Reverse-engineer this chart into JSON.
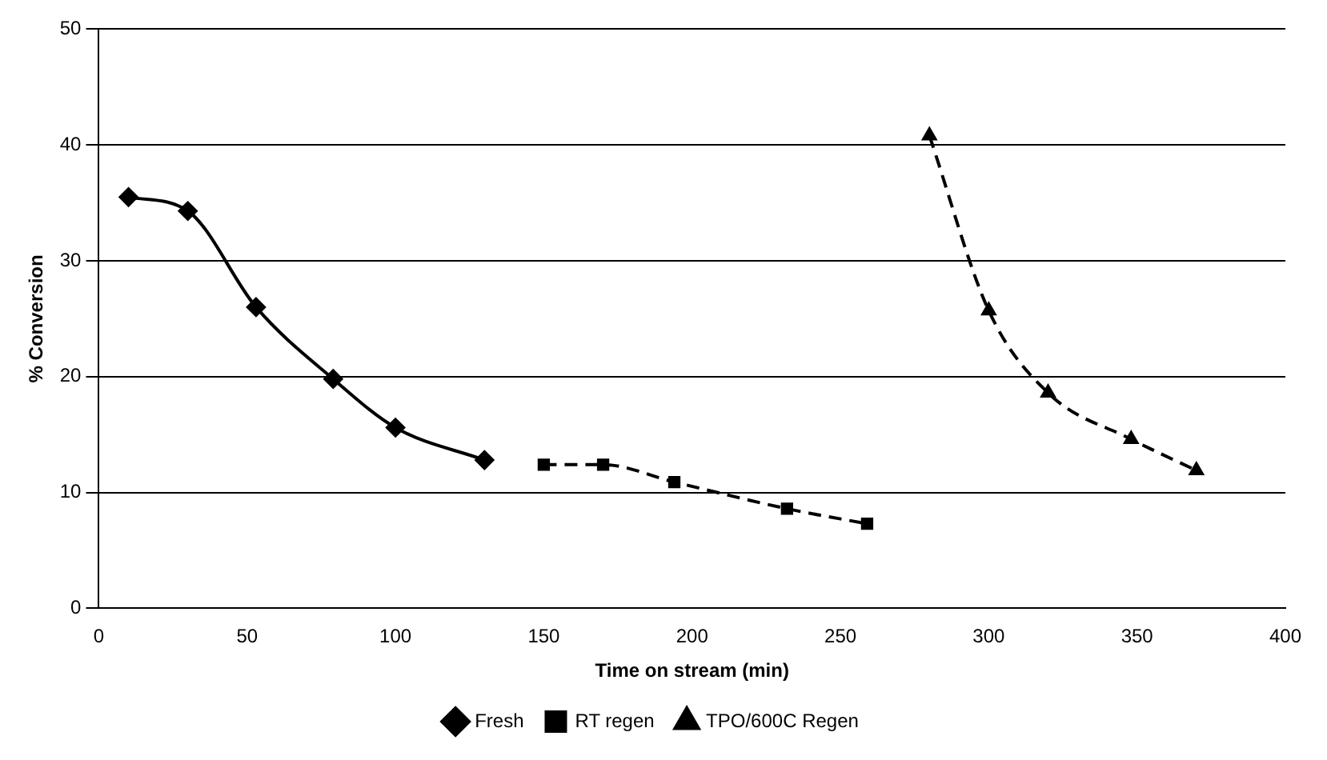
{
  "chart_data": {
    "type": "line",
    "xlabel": "Time on stream (min)",
    "ylabel": "% Conversion",
    "series": [
      {
        "name": "Fresh",
        "color": "#000000",
        "marker": "diamond",
        "line_style": "solid",
        "x": [
          10,
          30,
          53,
          79,
          100,
          130
        ],
        "values": [
          35.5,
          34.3,
          26,
          19.8,
          15.6,
          12.8
        ]
      },
      {
        "name": "RT regen",
        "color": "#000000",
        "marker": "square",
        "line_style": "dashed",
        "x": [
          150,
          170,
          194,
          232,
          259
        ],
        "values": [
          12.4,
          12.4,
          10.9,
          8.6,
          7.3
        ]
      },
      {
        "name": "TPO/600C Regen",
        "color": "#000000",
        "marker": "triangle",
        "line_style": "dashed",
        "x": [
          280,
          300,
          320,
          348,
          370
        ],
        "values": [
          40.8,
          25.7,
          18.6,
          14.6,
          11.9
        ]
      }
    ],
    "xlim": [
      0,
      400
    ],
    "xticks": [
      0,
      50,
      100,
      150,
      200,
      250,
      300,
      350,
      400
    ],
    "ylim": [
      0,
      50
    ],
    "yticks": [
      0,
      10,
      20,
      30,
      40,
      50
    ],
    "grid": "y",
    "legend": "bottom"
  }
}
